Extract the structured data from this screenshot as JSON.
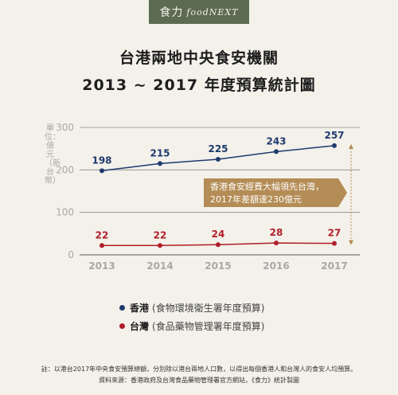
{
  "brand": {
    "zh": "食力",
    "en": "foodNEXT"
  },
  "title_line1": "台港兩地中央食安機關",
  "title_line2": "2013 ~ 2017 年度預算統計圖",
  "legend": [
    {
      "name": "香港",
      "desc": "(食物環境衛生署年度預算)",
      "color": "#1f3a6e"
    },
    {
      "name": "台灣",
      "desc": "(食品藥物管理署年度預算)",
      "color": "#b01e2a"
    }
  ],
  "callout": {
    "line1": "香港食安經費大幅領先台灣，",
    "line2": "2017年差額達230億元",
    "color": "#b48c55"
  },
  "footnote": "註：以港台2017年中央食安預算總額，分別除以港台兩地人口數，以得出每個香港人和台灣人的食安人均預算。",
  "source": "資料來源：香港政府及台灣食品藥物管理署官方網站，《食力》統計製圖",
  "chart_data": {
    "type": "line",
    "ylabel": "單位：億元（新台幣）",
    "ylim": [
      0,
      300
    ],
    "yticks": [
      0,
      100,
      200,
      300
    ],
    "x": [
      "2013",
      "2014",
      "2015",
      "2016",
      "2017"
    ],
    "grid": true,
    "series": [
      {
        "name": "香港",
        "values": [
          198,
          215,
          225,
          243,
          257
        ],
        "color": "#1f3a6e"
      },
      {
        "name": "台灣",
        "values": [
          22,
          22,
          24,
          28,
          27
        ],
        "color": "#b01e2a"
      }
    ]
  }
}
